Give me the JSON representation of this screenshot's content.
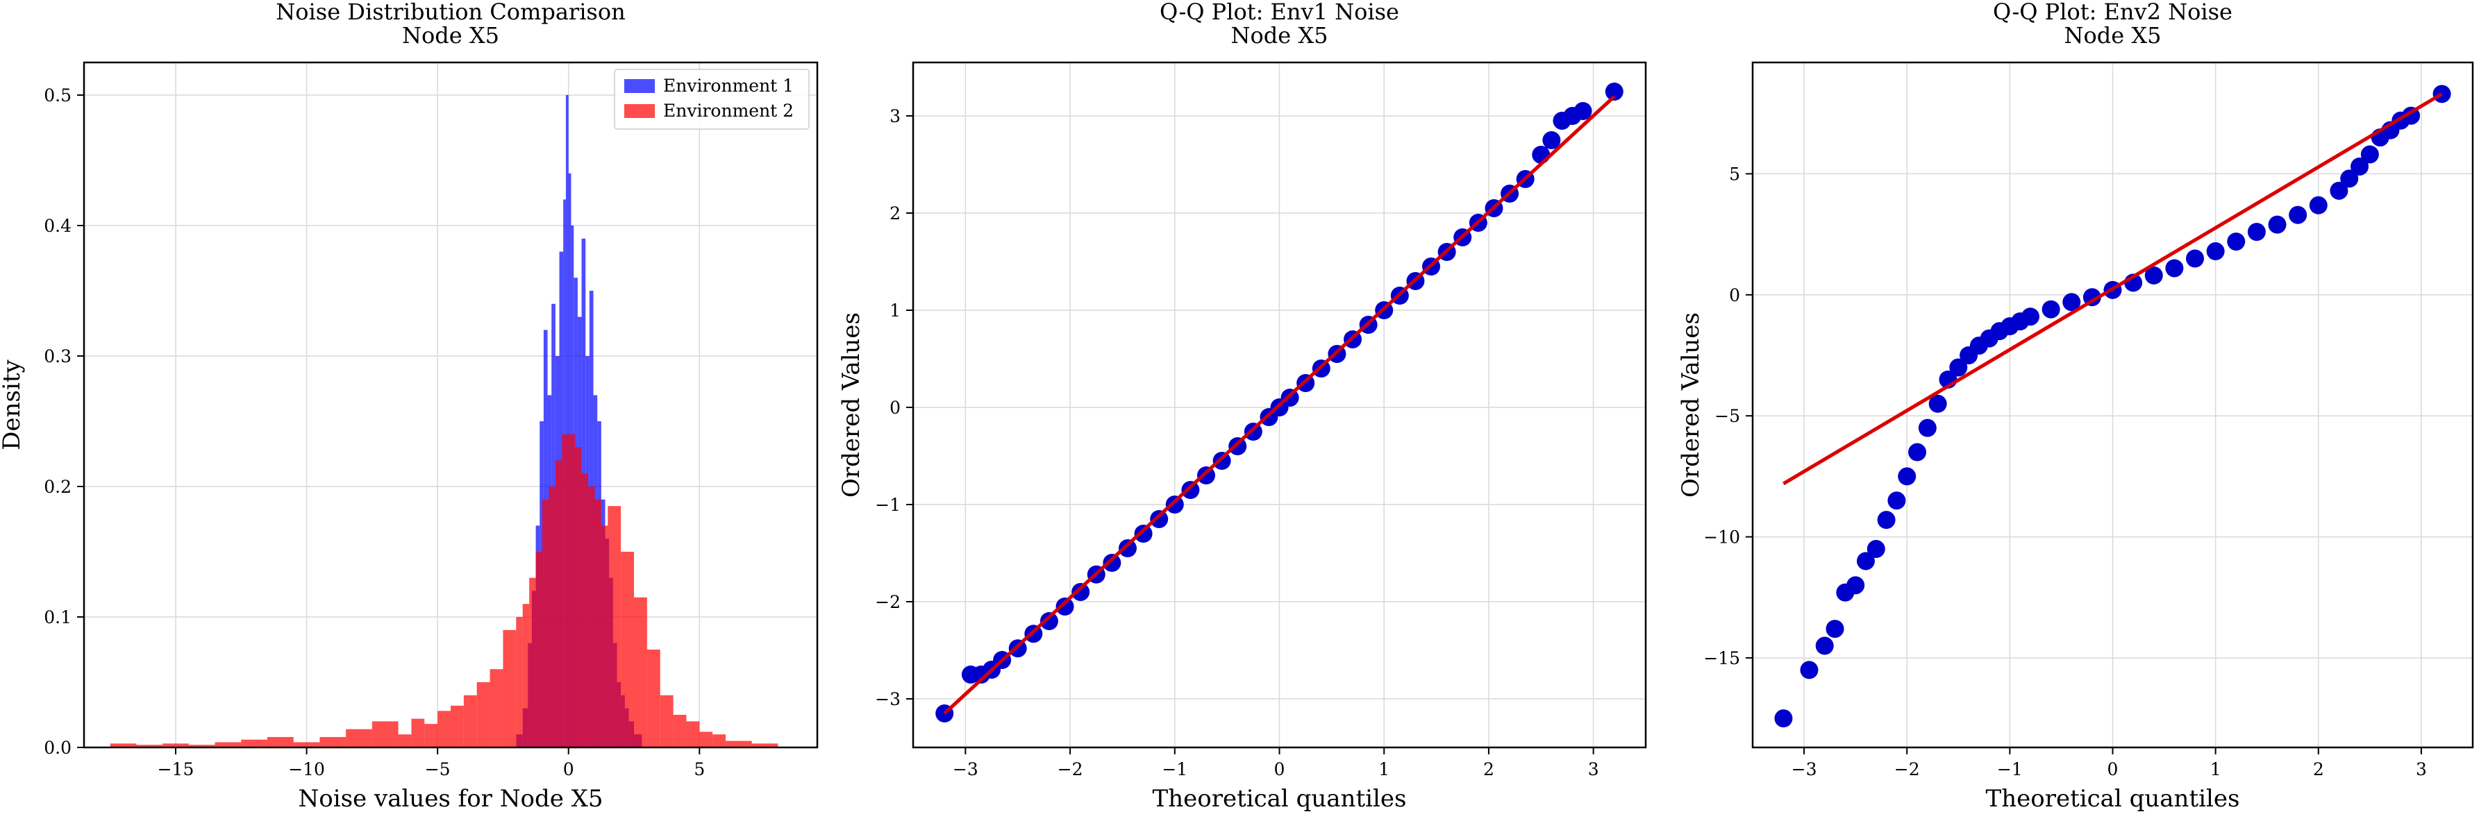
{
  "chart_data": [
    {
      "type": "histogram",
      "title": "Noise Distribution Comparison\nNode X5",
      "xlabel": "Noise values for Node X5",
      "ylabel": "Density",
      "xlim": [
        -18.5,
        9.5
      ],
      "ylim": [
        0,
        0.525
      ],
      "xticks": [
        -15,
        -10,
        -5,
        0,
        5
      ],
      "yticks": [
        0.0,
        0.1,
        0.2,
        0.3,
        0.4,
        0.5
      ],
      "grid": true,
      "legend_position": "top-right",
      "series": [
        {
          "name": "Environment 1",
          "color": "#0000ff",
          "alpha": 0.7,
          "bins": [
            [
              -2.0,
              -1.75,
              0.01
            ],
            [
              -1.75,
              -1.55,
              0.03
            ],
            [
              -1.55,
              -1.4,
              0.08
            ],
            [
              -1.4,
              -1.25,
              0.12
            ],
            [
              -1.25,
              -1.1,
              0.17
            ],
            [
              -1.1,
              -0.95,
              0.25
            ],
            [
              -0.95,
              -0.8,
              0.32
            ],
            [
              -0.8,
              -0.65,
              0.27
            ],
            [
              -0.65,
              -0.5,
              0.34
            ],
            [
              -0.5,
              -0.35,
              0.3
            ],
            [
              -0.35,
              -0.2,
              0.38
            ],
            [
              -0.2,
              -0.1,
              0.42
            ],
            [
              -0.1,
              0.0,
              0.5
            ],
            [
              0.0,
              0.1,
              0.44
            ],
            [
              0.1,
              0.2,
              0.4
            ],
            [
              0.2,
              0.35,
              0.36
            ],
            [
              0.35,
              0.5,
              0.33
            ],
            [
              0.5,
              0.65,
              0.39
            ],
            [
              0.65,
              0.8,
              0.3
            ],
            [
              0.8,
              0.95,
              0.35
            ],
            [
              0.95,
              1.1,
              0.27
            ],
            [
              1.1,
              1.25,
              0.25
            ],
            [
              1.25,
              1.4,
              0.19
            ],
            [
              1.4,
              1.55,
              0.16
            ],
            [
              1.55,
              1.7,
              0.13
            ],
            [
              1.7,
              1.85,
              0.08
            ],
            [
              1.85,
              2.0,
              0.05
            ],
            [
              2.0,
              2.15,
              0.04
            ],
            [
              2.15,
              2.3,
              0.03
            ],
            [
              2.3,
              2.5,
              0.02
            ],
            [
              2.5,
              2.8,
              0.01
            ]
          ]
        },
        {
          "name": "Environment 2",
          "color": "#ff0000",
          "alpha": 0.7,
          "bins": [
            [
              -17.5,
              -16.5,
              0.003
            ],
            [
              -16.5,
              -15.5,
              0.002
            ],
            [
              -15.5,
              -14.5,
              0.003
            ],
            [
              -14.5,
              -13.5,
              0.002
            ],
            [
              -13.5,
              -12.5,
              0.004
            ],
            [
              -12.5,
              -11.5,
              0.006
            ],
            [
              -11.5,
              -10.5,
              0.008
            ],
            [
              -10.5,
              -9.5,
              0.004
            ],
            [
              -9.5,
              -8.5,
              0.008
            ],
            [
              -8.5,
              -7.5,
              0.014
            ],
            [
              -7.5,
              -6.5,
              0.02
            ],
            [
              -6.5,
              -6.0,
              0.01
            ],
            [
              -6.0,
              -5.5,
              0.022
            ],
            [
              -5.5,
              -5.0,
              0.018
            ],
            [
              -5.0,
              -4.5,
              0.028
            ],
            [
              -4.5,
              -4.0,
              0.032
            ],
            [
              -4.0,
              -3.5,
              0.04
            ],
            [
              -3.5,
              -3.0,
              0.05
            ],
            [
              -3.0,
              -2.5,
              0.06
            ],
            [
              -2.5,
              -2.0,
              0.09
            ],
            [
              -2.0,
              -1.75,
              0.1
            ],
            [
              -1.75,
              -1.5,
              0.11
            ],
            [
              -1.5,
              -1.25,
              0.13
            ],
            [
              -1.25,
              -1.0,
              0.15
            ],
            [
              -1.0,
              -0.75,
              0.19
            ],
            [
              -0.75,
              -0.5,
              0.2
            ],
            [
              -0.5,
              -0.25,
              0.22
            ],
            [
              -0.25,
              0.0,
              0.24
            ],
            [
              0.0,
              0.25,
              0.24
            ],
            [
              0.25,
              0.5,
              0.23
            ],
            [
              0.5,
              0.75,
              0.21
            ],
            [
              0.75,
              1.0,
              0.2
            ],
            [
              1.0,
              1.25,
              0.19
            ],
            [
              1.25,
              1.5,
              0.17
            ],
            [
              1.5,
              2.0,
              0.185
            ],
            [
              2.0,
              2.5,
              0.15
            ],
            [
              2.5,
              3.0,
              0.115
            ],
            [
              3.0,
              3.5,
              0.075
            ],
            [
              3.5,
              4.0,
              0.04
            ],
            [
              4.0,
              4.5,
              0.025
            ],
            [
              4.5,
              5.0,
              0.02
            ],
            [
              5.0,
              5.5,
              0.012
            ],
            [
              5.5,
              6.0,
              0.01
            ],
            [
              6.0,
              7.0,
              0.005
            ],
            [
              7.0,
              8.0,
              0.003
            ]
          ]
        }
      ]
    },
    {
      "type": "scatter",
      "title": "Q-Q Plot: Env1 Noise\nNode X5",
      "xlabel": "Theoretical quantiles",
      "ylabel": "Ordered Values",
      "xlim": [
        -3.5,
        3.5
      ],
      "ylim": [
        -3.5,
        3.55
      ],
      "xticks": [
        -3,
        -2,
        -1,
        0,
        1,
        2,
        3
      ],
      "yticks": [
        -3,
        -2,
        -1,
        0,
        1,
        2,
        3
      ],
      "grid": true,
      "point_color": "#0000cc",
      "line_color": "#dd0000",
      "fit_line": [
        [
          -3.2,
          -3.15
        ],
        [
          3.2,
          3.2
        ]
      ],
      "points": [
        [
          -3.2,
          -3.15
        ],
        [
          -2.95,
          -2.75
        ],
        [
          -2.85,
          -2.75
        ],
        [
          -2.75,
          -2.7
        ],
        [
          -2.65,
          -2.6
        ],
        [
          -2.5,
          -2.48
        ],
        [
          -2.35,
          -2.33
        ],
        [
          -2.2,
          -2.2
        ],
        [
          -2.05,
          -2.05
        ],
        [
          -1.9,
          -1.9
        ],
        [
          -1.75,
          -1.72
        ],
        [
          -1.6,
          -1.6
        ],
        [
          -1.45,
          -1.45
        ],
        [
          -1.3,
          -1.3
        ],
        [
          -1.15,
          -1.15
        ],
        [
          -1.0,
          -1.0
        ],
        [
          -0.85,
          -0.85
        ],
        [
          -0.7,
          -0.7
        ],
        [
          -0.55,
          -0.55
        ],
        [
          -0.4,
          -0.4
        ],
        [
          -0.25,
          -0.25
        ],
        [
          -0.1,
          -0.1
        ],
        [
          0.0,
          0.0
        ],
        [
          0.1,
          0.1
        ],
        [
          0.25,
          0.25
        ],
        [
          0.4,
          0.4
        ],
        [
          0.55,
          0.55
        ],
        [
          0.7,
          0.7
        ],
        [
          0.85,
          0.85
        ],
        [
          1.0,
          1.0
        ],
        [
          1.15,
          1.15
        ],
        [
          1.3,
          1.3
        ],
        [
          1.45,
          1.45
        ],
        [
          1.6,
          1.6
        ],
        [
          1.75,
          1.75
        ],
        [
          1.9,
          1.9
        ],
        [
          2.05,
          2.05
        ],
        [
          2.2,
          2.2
        ],
        [
          2.35,
          2.35
        ],
        [
          2.5,
          2.6
        ],
        [
          2.6,
          2.75
        ],
        [
          2.7,
          2.95
        ],
        [
          2.8,
          3.0
        ],
        [
          2.9,
          3.05
        ],
        [
          3.2,
          3.25
        ]
      ]
    },
    {
      "type": "scatter",
      "title": "Q-Q Plot: Env2 Noise\nNode X5",
      "xlabel": "Theoretical quantiles",
      "ylabel": "Ordered Values",
      "xlim": [
        -3.5,
        3.5
      ],
      "ylim": [
        -18.7,
        9.6
      ],
      "xticks": [
        -3,
        -2,
        -1,
        0,
        1,
        2,
        3
      ],
      "yticks": [
        -15,
        -10,
        -5,
        0,
        5
      ],
      "grid": true,
      "point_color": "#0000cc",
      "line_color": "#dd0000",
      "fit_line": [
        [
          -3.2,
          -7.8
        ],
        [
          3.2,
          8.3
        ]
      ],
      "points": [
        [
          -3.2,
          -17.5
        ],
        [
          -2.95,
          -15.5
        ],
        [
          -2.8,
          -14.5
        ],
        [
          -2.7,
          -13.8
        ],
        [
          -2.6,
          -12.3
        ],
        [
          -2.5,
          -12.0
        ],
        [
          -2.4,
          -11.0
        ],
        [
          -2.3,
          -10.5
        ],
        [
          -2.2,
          -9.3
        ],
        [
          -2.1,
          -8.5
        ],
        [
          -2.0,
          -7.5
        ],
        [
          -1.9,
          -6.5
        ],
        [
          -1.8,
          -5.5
        ],
        [
          -1.7,
          -4.5
        ],
        [
          -1.6,
          -3.5
        ],
        [
          -1.5,
          -3.0
        ],
        [
          -1.4,
          -2.5
        ],
        [
          -1.3,
          -2.1
        ],
        [
          -1.2,
          -1.8
        ],
        [
          -1.1,
          -1.5
        ],
        [
          -1.0,
          -1.3
        ],
        [
          -0.9,
          -1.1
        ],
        [
          -0.8,
          -0.9
        ],
        [
          -0.6,
          -0.6
        ],
        [
          -0.4,
          -0.3
        ],
        [
          -0.2,
          -0.1
        ],
        [
          0.0,
          0.2
        ],
        [
          0.2,
          0.5
        ],
        [
          0.4,
          0.8
        ],
        [
          0.6,
          1.1
        ],
        [
          0.8,
          1.5
        ],
        [
          1.0,
          1.8
        ],
        [
          1.2,
          2.2
        ],
        [
          1.4,
          2.6
        ],
        [
          1.6,
          2.9
        ],
        [
          1.8,
          3.3
        ],
        [
          2.0,
          3.7
        ],
        [
          2.2,
          4.3
        ],
        [
          2.3,
          4.8
        ],
        [
          2.4,
          5.3
        ],
        [
          2.5,
          5.8
        ],
        [
          2.6,
          6.5
        ],
        [
          2.7,
          6.8
        ],
        [
          2.8,
          7.2
        ],
        [
          2.9,
          7.4
        ],
        [
          3.2,
          8.3
        ]
      ]
    }
  ]
}
